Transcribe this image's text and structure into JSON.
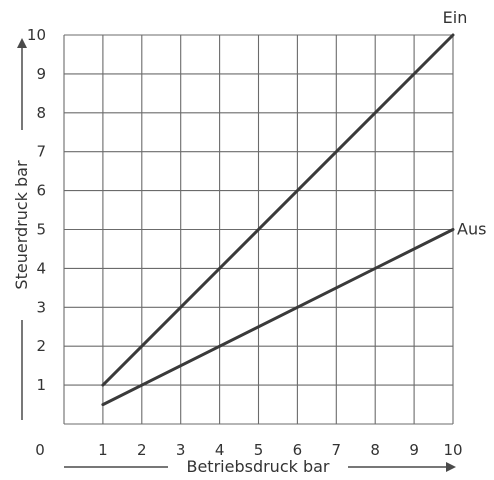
{
  "chart_data": {
    "type": "line",
    "xlabel": "Betriebsdruck bar",
    "ylabel": "Steuerdruck bar",
    "xlim": [
      0,
      10
    ],
    "ylim": [
      0,
      10
    ],
    "xticks": [
      0,
      1,
      2,
      3,
      4,
      5,
      6,
      7,
      8,
      9,
      10
    ],
    "yticks": [
      1,
      2,
      3,
      4,
      5,
      6,
      7,
      8,
      9,
      10
    ],
    "grid": true,
    "series": [
      {
        "name": "Ein",
        "x": [
          1,
          10
        ],
        "y": [
          1,
          10
        ]
      },
      {
        "name": "Aus",
        "x": [
          1,
          10
        ],
        "y": [
          0.5,
          5
        ]
      }
    ]
  }
}
